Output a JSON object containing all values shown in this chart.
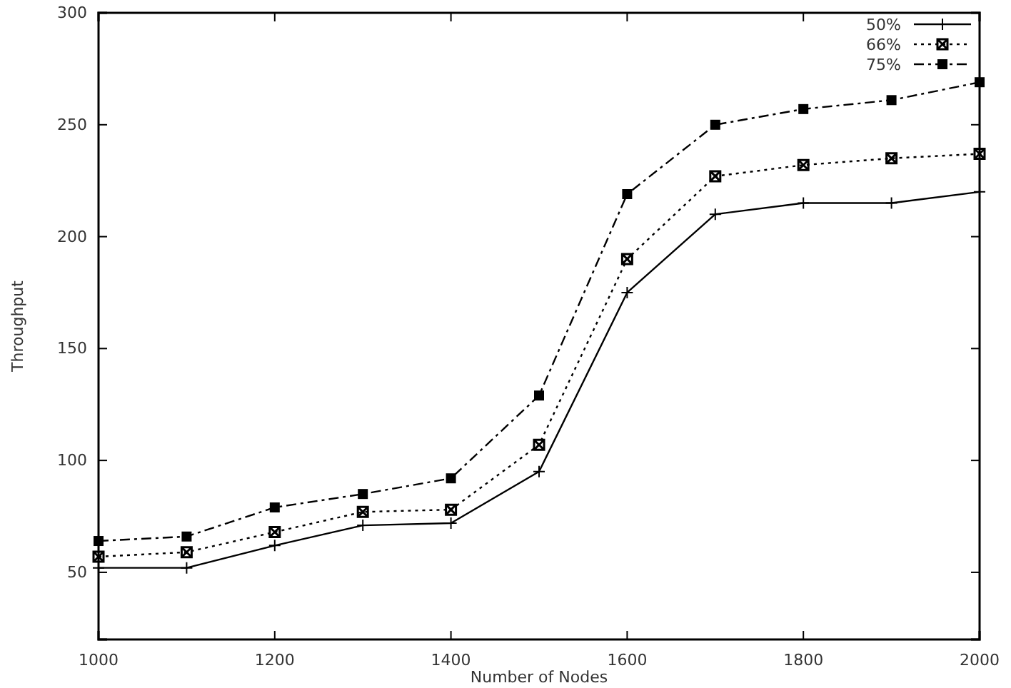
{
  "chart_data": {
    "type": "line",
    "xlabel": "Number of Nodes",
    "ylabel": "Throughput",
    "x": [
      1000,
      1100,
      1200,
      1300,
      1400,
      1500,
      1600,
      1700,
      1800,
      1900,
      2000
    ],
    "series": [
      {
        "name": "50%",
        "color": "#000000",
        "marker": "cross",
        "line_style": "solid",
        "values": [
          52,
          52,
          62,
          71,
          72,
          95,
          175,
          210,
          215,
          215,
          220
        ]
      },
      {
        "name": "66%",
        "color": "#000000",
        "marker": "cross",
        "line_style": "dotted",
        "values": [
          57,
          59,
          68,
          77,
          78,
          107,
          190,
          227,
          232,
          235,
          237
        ]
      },
      {
        "name": "75%",
        "color": "#000000",
        "marker": "square",
        "line_style": "dashed",
        "values": [
          64,
          66,
          79,
          85,
          92,
          129,
          219,
          250,
          257,
          261,
          269
        ]
      }
    ],
    "xlim": [
      1000,
      2000
    ],
    "xticks": [
      1000,
      1200,
      1400,
      1600,
      1800,
      2000
    ],
    "ylim": [
      20,
      300
    ],
    "yticks": [
      50,
      100,
      150,
      200,
      250,
      300
    ],
    "grid": false,
    "legend": "top right"
  }
}
